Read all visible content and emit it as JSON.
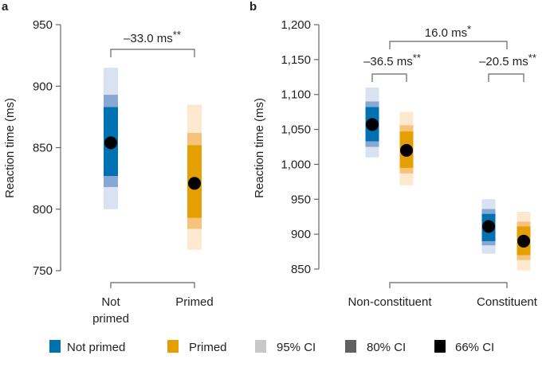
{
  "chart_data": [
    {
      "panel": "a",
      "type": "interval",
      "ylabel": "Reaction time (ms)",
      "ylim": [
        750,
        950
      ],
      "yticks": [
        "750",
        "800",
        "850",
        "900",
        "950"
      ],
      "ytick_values": [
        750,
        800,
        850,
        900,
        950
      ],
      "categories": [
        "Not primed",
        "Primed"
      ],
      "category_labels": [
        [
          "Not",
          "primed"
        ],
        [
          "Primed"
        ]
      ],
      "series": [
        {
          "name": "Not primed",
          "mean": 854,
          "ci95": [
            800,
            915
          ],
          "ci80": [
            818,
            893
          ],
          "ci66": [
            827,
            883
          ]
        },
        {
          "name": "Primed",
          "mean": 821,
          "ci95": [
            767,
            885
          ],
          "ci80": [
            784,
            862
          ],
          "ci66": [
            793,
            852
          ]
        }
      ],
      "annotations": [
        {
          "text": "–33.0 ms",
          "stars": "**"
        }
      ]
    },
    {
      "panel": "b",
      "type": "interval",
      "ylabel": "Reaction time (ms)",
      "ylim": [
        850,
        1200
      ],
      "yticks": [
        "850",
        "900",
        "950",
        "1,000",
        "1,050",
        "1,100",
        "1,150",
        "1,200"
      ],
      "ytick_values": [
        850,
        900,
        950,
        1000,
        1050,
        1100,
        1150,
        1200
      ],
      "categories": [
        "Non-constituent",
        "Constituent"
      ],
      "series": [
        {
          "group": "Non-constituent",
          "name": "Not primed",
          "mean": 1057,
          "ci95": [
            1010,
            1110
          ],
          "ci80": [
            1025,
            1090
          ],
          "ci66": [
            1033,
            1082
          ]
        },
        {
          "group": "Non-constituent",
          "name": "Primed",
          "mean": 1020,
          "ci95": [
            970,
            1075
          ],
          "ci80": [
            987,
            1056
          ],
          "ci66": [
            995,
            1047
          ]
        },
        {
          "group": "Constituent",
          "name": "Not primed",
          "mean": 911,
          "ci95": [
            872,
            950
          ],
          "ci80": [
            884,
            936
          ],
          "ci66": [
            890,
            929
          ]
        },
        {
          "group": "Constituent",
          "name": "Primed",
          "mean": 890,
          "ci95": [
            848,
            932
          ],
          "ci80": [
            863,
            918
          ],
          "ci66": [
            870,
            911
          ]
        }
      ],
      "annotations": [
        {
          "text": "16.0 ms",
          "stars": "*"
        },
        {
          "text": "–36.5 ms",
          "stars": "**"
        },
        {
          "text": "–20.5 ms",
          "stars": "**"
        }
      ]
    }
  ],
  "panel_labels": [
    "a",
    "b"
  ],
  "legend": [
    {
      "label": "Not primed",
      "color": "#0072b2"
    },
    {
      "label": "Primed",
      "color": "#e69f00"
    },
    {
      "label": "95% CI",
      "color": "#c8c8c8"
    },
    {
      "label": "80% CI",
      "color": "#606060"
    },
    {
      "label": "66% CI",
      "color": "#000000"
    }
  ],
  "colors": {
    "Not primed": {
      "ci66": "#0072b2",
      "ci80": "#86a8d3",
      "ci95": "#d8e2f1"
    },
    "Primed": {
      "ci66": "#e69f00",
      "ci80": "#f7c27a",
      "ci95": "#fde9cf"
    }
  }
}
